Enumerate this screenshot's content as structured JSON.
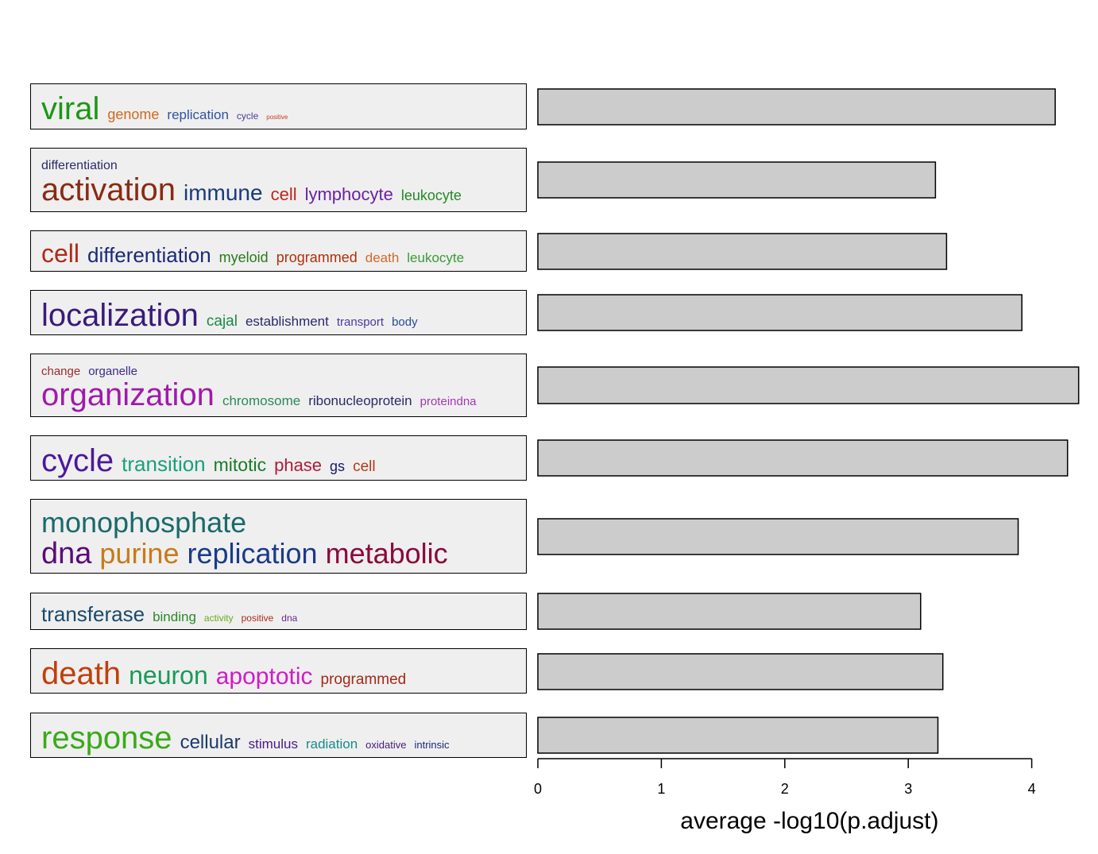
{
  "chart_data": {
    "type": "bar",
    "orientation": "horizontal",
    "xlabel": "average -log10(p.adjust)",
    "xlim": [
      0,
      4.25
    ],
    "xticks": [
      0,
      1,
      2,
      3,
      4
    ],
    "grid": false,
    "clusters": [
      {
        "value": 4.19,
        "lines": [
          [
            {
              "text": "viral",
              "color": "#1e9615",
              "size": 40
            },
            {
              "text": "genome",
              "color": "#d2691e",
              "size": 18
            },
            {
              "text": "replication",
              "color": "#3052a3",
              "size": 17
            },
            {
              "text": "cycle",
              "color": "#4a3a9a",
              "size": 12
            },
            {
              "text": "positive",
              "color": "#c83a2a",
              "size": 8
            }
          ]
        ]
      },
      {
        "value": 3.22,
        "lines": [
          [
            {
              "text": "differentiation",
              "color": "#2a2a6a",
              "size": 16
            }
          ],
          [
            {
              "text": "activation",
              "color": "#8b2a12",
              "size": 40
            },
            {
              "text": "immune",
              "color": "#1a3a7a",
              "size": 28
            },
            {
              "text": "cell",
              "color": "#b8271f",
              "size": 22
            },
            {
              "text": "lymphocyte",
              "color": "#6a22a2",
              "size": 22
            },
            {
              "text": "leukocyte",
              "color": "#248a24",
              "size": 18
            }
          ]
        ]
      },
      {
        "value": 3.31,
        "lines": [
          [
            {
              "text": "cell",
              "color": "#b02a1a",
              "size": 32
            },
            {
              "text": "differentiation",
              "color": "#1a2a7a",
              "size": 26
            },
            {
              "text": "myeloid",
              "color": "#2a7a1a",
              "size": 18
            },
            {
              "text": "programmed",
              "color": "#b0300a",
              "size": 18
            },
            {
              "text": "death",
              "color": "#d2692a",
              "size": 17
            },
            {
              "text": "leukocyte",
              "color": "#3a9a3a",
              "size": 17
            }
          ]
        ]
      },
      {
        "value": 3.92,
        "lines": [
          [
            {
              "text": "localization",
              "color": "#3a1a7a",
              "size": 40
            },
            {
              "text": "cajal",
              "color": "#1a8a4a",
              "size": 19
            },
            {
              "text": "establishment",
              "color": "#2a2a6a",
              "size": 17
            },
            {
              "text": "transport",
              "color": "#4a3aa2",
              "size": 15
            },
            {
              "text": "body",
              "color": "#2a4a9a",
              "size": 15
            }
          ]
        ]
      },
      {
        "value": 4.38,
        "lines": [
          [
            {
              "text": "change",
              "color": "#a02a2a",
              "size": 15
            },
            {
              "text": "organelle",
              "color": "#3a2a8a",
              "size": 15
            }
          ],
          [
            {
              "text": "organization",
              "color": "#a01aaa",
              "size": 40
            },
            {
              "text": "chromosome",
              "color": "#2a8a5a",
              "size": 17
            },
            {
              "text": "ribonucleoprotein",
              "color": "#2a2a6a",
              "size": 17
            },
            {
              "text": "proteindna",
              "color": "#a03ab2",
              "size": 15
            }
          ]
        ]
      },
      {
        "value": 4.29,
        "lines": [
          [
            {
              "text": "cycle",
              "color": "#4a1a9a",
              "size": 40
            },
            {
              "text": "transition",
              "color": "#1aa07a",
              "size": 26
            },
            {
              "text": "mitotic",
              "color": "#1a7a2a",
              "size": 23
            },
            {
              "text": "phase",
              "color": "#b01a3a",
              "size": 22
            },
            {
              "text": "gs",
              "color": "#1a1a6a",
              "size": 18
            },
            {
              "text": "cell",
              "color": "#b03a1a",
              "size": 19
            }
          ]
        ]
      },
      {
        "value": 3.89,
        "lines": [
          [
            {
              "text": "monophosphate",
              "color": "#1a6a6a",
              "size": 36
            }
          ],
          [
            {
              "text": "dna",
              "color": "#5a0a7a",
              "size": 38
            },
            {
              "text": "purine",
              "color": "#c87a1a",
              "size": 36
            },
            {
              "text": "replication",
              "color": "#1a3a8a",
              "size": 36
            },
            {
              "text": "metabolic",
              "color": "#8a0a3a",
              "size": 36
            }
          ]
        ]
      },
      {
        "value": 3.1,
        "lines": [
          [
            {
              "text": "transferase",
              "color": "#1a4a6a",
              "size": 26
            },
            {
              "text": "binding",
              "color": "#2a8a2a",
              "size": 17
            },
            {
              "text": "activity",
              "color": "#6aaa1a",
              "size": 12
            },
            {
              "text": "positive",
              "color": "#b02a1a",
              "size": 12
            },
            {
              "text": "dna",
              "color": "#6a2a8a",
              "size": 12
            }
          ]
        ]
      },
      {
        "value": 3.28,
        "lines": [
          [
            {
              "text": "death",
              "color": "#c0400a",
              "size": 40
            },
            {
              "text": "neuron",
              "color": "#1a9a5a",
              "size": 32
            },
            {
              "text": "apoptotic",
              "color": "#d21ac8",
              "size": 30
            },
            {
              "text": "programmed",
              "color": "#a02a1a",
              "size": 19
            }
          ]
        ]
      },
      {
        "value": 3.24,
        "lines": [
          [
            {
              "text": "response",
              "color": "#3aaa1a",
              "size": 40
            },
            {
              "text": "cellular",
              "color": "#1a3a6a",
              "size": 24
            },
            {
              "text": "stimulus",
              "color": "#4a1a8a",
              "size": 17
            },
            {
              "text": "radiation",
              "color": "#1a8a8a",
              "size": 17
            },
            {
              "text": "oxidative",
              "color": "#4a1a7a",
              "size": 13
            },
            {
              "text": "intrinsic",
              "color": "#1a2a7a",
              "size": 13
            }
          ]
        ]
      }
    ]
  }
}
